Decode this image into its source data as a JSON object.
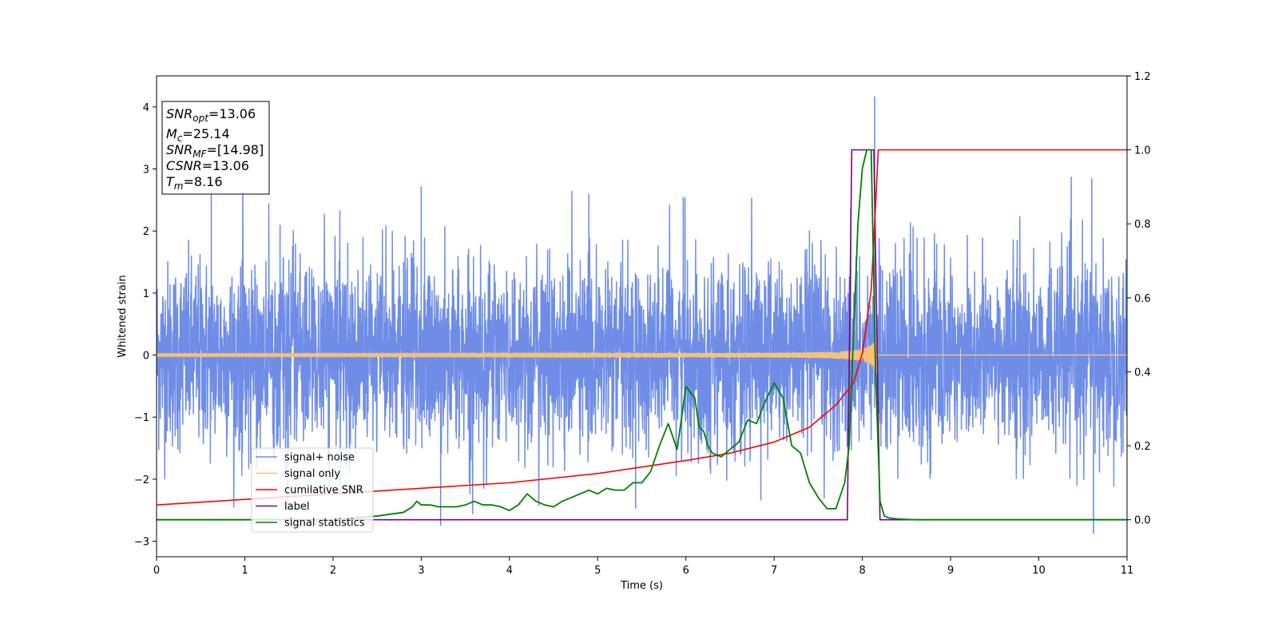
{
  "chart_data": {
    "type": "line",
    "xlabel": "Time (s)",
    "ylabel": "Whitened strain",
    "xlim": [
      0,
      11
    ],
    "ylim_left": [
      -3.25,
      4.5
    ],
    "ylim_right": [
      -0.1,
      1.2
    ],
    "x_ticks": [
      "0",
      "1",
      "2",
      "3",
      "4",
      "5",
      "6",
      "7",
      "8",
      "9",
      "10",
      "11"
    ],
    "y_ticks_left": [
      "−3",
      "−2",
      "−1",
      "0",
      "1",
      "2",
      "3",
      "4"
    ],
    "y_ticks_right": [
      "0.0",
      "0.2",
      "0.4",
      "0.6",
      "0.8",
      "1.0",
      "1.2"
    ],
    "legend_position": "lower-left",
    "info_box": {
      "snr_opt_main": "SNR",
      "snr_opt_sub": "opt",
      "snr_opt_value": "=13.06",
      "mc_main": "M",
      "mc_sub": "c",
      "mc_value": "=25.14",
      "snr_mf_main": "SNR",
      "snr_mf_sub": "MF",
      "snr_mf_value": "=[14.98]",
      "csnr_main": "CSNR",
      "csnr_value": "=13.06",
      "tm_main": "T",
      "tm_sub": "m",
      "tm_value": "=8.16"
    },
    "series": [
      {
        "name": "signal+ noise",
        "axis": "left",
        "color": "#6f8de6",
        "description_values": "noise amplitude about ±1.5 (sigma ~0.75) with peaks to ~3.0, max 4.17 near t=8.14",
        "peaks": [
          [
            0.62,
            2.78
          ],
          [
            1.4,
            2.1
          ],
          [
            3.0,
            2.72
          ],
          [
            3.22,
            -2.75
          ],
          [
            4.9,
            2.6
          ],
          [
            5.97,
            2.55
          ],
          [
            8.14,
            4.17
          ],
          [
            10.62,
            -2.88
          ],
          [
            10.6,
            2.85
          ]
        ]
      },
      {
        "name": "signal only",
        "axis": "left",
        "color": "#f5c27a",
        "chirp_start": 0,
        "chirp_end": 8.16,
        "amplitude_end": 0.33
      },
      {
        "name": "cumilative SNR",
        "axis": "right",
        "color": "#ff0000",
        "x": [
          0,
          1,
          2,
          3,
          4,
          5,
          6,
          6.5,
          7,
          7.4,
          7.7,
          7.9,
          8.0,
          8.1,
          8.15,
          8.18,
          11
        ],
        "y": [
          0.04,
          0.055,
          0.07,
          0.085,
          0.1,
          0.125,
          0.16,
          0.18,
          0.21,
          0.25,
          0.31,
          0.37,
          0.45,
          0.62,
          0.85,
          1.0,
          1.0
        ]
      },
      {
        "name": "label",
        "axis": "right",
        "color": "#7f007f",
        "x": [
          0,
          7.83,
          7.88,
          8.13,
          8.2,
          11
        ],
        "y": [
          0.0,
          0.0,
          1.0,
          1.0,
          0.0,
          0.0
        ]
      },
      {
        "name": "signal statistics",
        "axis": "right",
        "color": "#008000",
        "x": [
          0,
          2.0,
          2.5,
          2.8,
          2.9,
          2.95,
          3.0,
          3.1,
          3.2,
          3.3,
          3.4,
          3.5,
          3.6,
          3.7,
          3.8,
          3.9,
          4.0,
          4.1,
          4.2,
          4.3,
          4.4,
          4.5,
          4.6,
          4.7,
          4.8,
          4.9,
          5.0,
          5.1,
          5.2,
          5.3,
          5.4,
          5.5,
          5.6,
          5.7,
          5.8,
          5.9,
          6.0,
          6.1,
          6.15,
          6.2,
          6.25,
          6.3,
          6.4,
          6.5,
          6.6,
          6.7,
          6.8,
          6.9,
          7.0,
          7.1,
          7.2,
          7.3,
          7.4,
          7.5,
          7.6,
          7.7,
          7.8,
          7.85,
          7.9,
          7.95,
          8.0,
          8.05,
          8.1,
          8.15,
          8.2,
          8.25,
          8.3,
          8.4,
          8.6,
          11
        ],
        "y": [
          0.0,
          0.0,
          0.01,
          0.02,
          0.035,
          0.05,
          0.04,
          0.04,
          0.035,
          0.035,
          0.035,
          0.04,
          0.05,
          0.04,
          0.04,
          0.035,
          0.025,
          0.04,
          0.07,
          0.05,
          0.04,
          0.035,
          0.05,
          0.06,
          0.07,
          0.08,
          0.07,
          0.085,
          0.08,
          0.08,
          0.1,
          0.1,
          0.13,
          0.2,
          0.26,
          0.19,
          0.36,
          0.33,
          0.25,
          0.24,
          0.2,
          0.18,
          0.17,
          0.19,
          0.21,
          0.27,
          0.26,
          0.32,
          0.37,
          0.33,
          0.2,
          0.18,
          0.1,
          0.06,
          0.03,
          0.03,
          0.1,
          0.2,
          0.5,
          0.8,
          0.95,
          1.0,
          1.0,
          0.4,
          0.05,
          0.01,
          0.005,
          0.002,
          0.0,
          0.0
        ]
      }
    ]
  }
}
